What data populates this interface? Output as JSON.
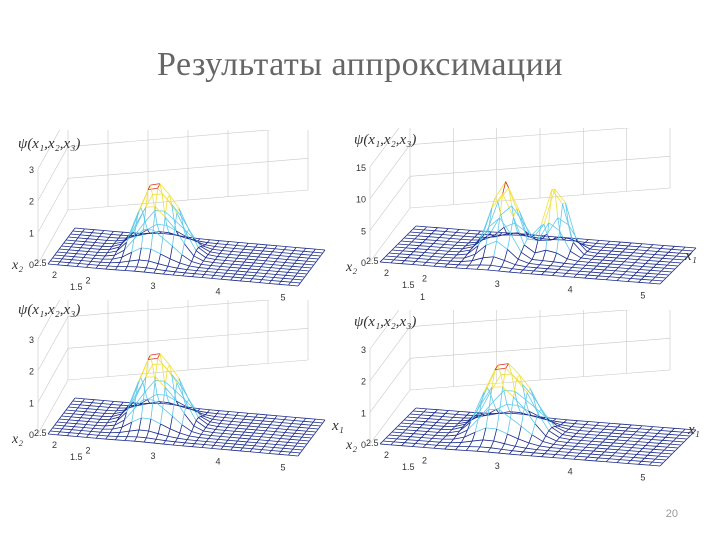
{
  "slide": {
    "title": "Результаты аппроксимации",
    "page_number": "20"
  },
  "panels": [
    {
      "label": "ψ(x₁,x₂,x₃)",
      "z_ticks": [
        "3",
        "2",
        "1",
        "0"
      ],
      "x_ticks": [
        "2",
        "3",
        "4",
        "5"
      ],
      "y_ticks": [
        "2.5",
        "2",
        "1.5"
      ],
      "x1_label": "",
      "x2_label": "x₂",
      "peaks": "single"
    },
    {
      "label": "ψ(x₁,x₂,x₃)",
      "z_ticks": [
        "15",
        "10",
        "5",
        "0"
      ],
      "x_ticks": [
        "2",
        "3",
        "4",
        "5"
      ],
      "y_ticks": [
        "2.5",
        "2",
        "1.5",
        "1"
      ],
      "x1_label": "x₁",
      "x2_label": "x₂",
      "peaks": "double"
    },
    {
      "label": "ψ(x₁,x₂,x₃)",
      "z_ticks": [
        "3",
        "2",
        "1",
        "0"
      ],
      "x_ticks": [
        "2",
        "3",
        "4",
        "5"
      ],
      "y_ticks": [
        "2.5",
        "2",
        "1.5"
      ],
      "x1_label": "x₁",
      "x2_label": "x₂",
      "peaks": "single"
    },
    {
      "label": "ψ(x₁,x₂,x₃)",
      "z_ticks": [
        "3",
        "2",
        "1",
        "0"
      ],
      "x_ticks": [
        "2",
        "3",
        "4",
        "5"
      ],
      "y_ticks": [
        "2.5",
        "2",
        "1.5"
      ],
      "x1_label": "x₁",
      "x2_label": "x₂",
      "peaks": "single"
    }
  ],
  "colors": {
    "mesh_low": "#1a2a8c",
    "mesh_mid": "#5fc8e8",
    "mesh_high": "#f0e040",
    "mesh_peak": "#d83020",
    "grid": "#c8c8c8",
    "axis_text": "#333333"
  }
}
